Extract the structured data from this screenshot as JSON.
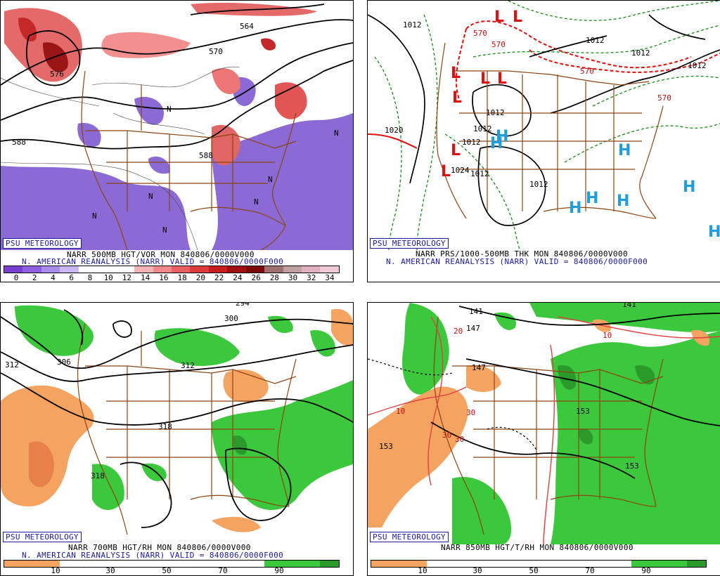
{
  "panels": [
    {
      "id": "vor500",
      "psu_label": "PSU METEOROLOGY",
      "caption_top": "NARR 500MB HGT/VOR MON 840806/0000V000",
      "caption_bottom": "N. AMERICAN REANALYSIS (NARR) VALID = 840806/0000F000",
      "colorbar_labels": [
        "0",
        "2",
        "4",
        "6",
        "8",
        "10",
        "12",
        "14",
        "16",
        "18",
        "20",
        "22",
        "24",
        "26",
        "28",
        "30",
        "32",
        "34"
      ],
      "colorbar_colors": [
        "#7a3fd0",
        "#8f5fe0",
        "#a98bea",
        "#c9b8f2",
        "#ffffff",
        "#ffffff",
        "#ffffff",
        "#f6b3b3",
        "#f08a8a",
        "#e86060",
        "#dd3a3a",
        "#c81e1e",
        "#a01010",
        "#7a0a0a",
        "#a07070",
        "#c0a0a0",
        "#e0b0c0",
        "#f0c8d8"
      ],
      "contour_labels": [
        "564",
        "570",
        "576",
        "588",
        "588"
      ],
      "marker_letter": "N"
    },
    {
      "id": "prs",
      "psu_label": "PSU METEOROLOGY",
      "caption_top": "NARR PRS/1000-500MB THK MON 840806/0000V000",
      "caption_bottom": "N. AMERICAN REANALYSIS (NARR) VALID = 840806/0000F000",
      "isobar_labels": [
        "1012",
        "1012",
        "1012",
        "1012",
        "1012",
        "1012",
        "1012",
        "1012",
        "1012",
        "1020",
        "1024"
      ],
      "thickness_labels": [
        "570",
        "570",
        "570",
        "570"
      ],
      "low_letter": "L",
      "high_letter": "H"
    },
    {
      "id": "rh700",
      "psu_label": "PSU METEOROLOGY",
      "caption_top": "NARR 700MB HGT/RH MON 840806/0000V000",
      "caption_bottom": "N. AMERICAN REANALYSIS (NARR) VALID = 840806/0000F000",
      "colorbar_labels": [
        "10",
        "30",
        "50",
        "70",
        "90"
      ],
      "contour_labels": [
        "294",
        "300",
        "306",
        "312",
        "312",
        "318",
        "318"
      ]
    },
    {
      "id": "rh850",
      "psu_label": "PSU METEOROLOGY",
      "caption_top": "NARR 850MB HGT/T/RH MON 840806/0000V000",
      "colorbar_labels": [
        "10",
        "30",
        "50",
        "70",
        "90"
      ],
      "contour_labels": [
        "141",
        "141",
        "147",
        "147",
        "153",
        "153",
        "153"
      ],
      "temp_labels": [
        "10",
        "10",
        "20",
        "30",
        "30",
        "30"
      ]
    }
  ],
  "colors": {
    "border": "#8b4513",
    "dry": "#f4a460",
    "moist": "#3cc83c",
    "moist_dark": "#2a9a2a",
    "caption_blue": "#1a1aa0",
    "low_red": "#e01010",
    "high_blue": "#1e9ee0"
  }
}
